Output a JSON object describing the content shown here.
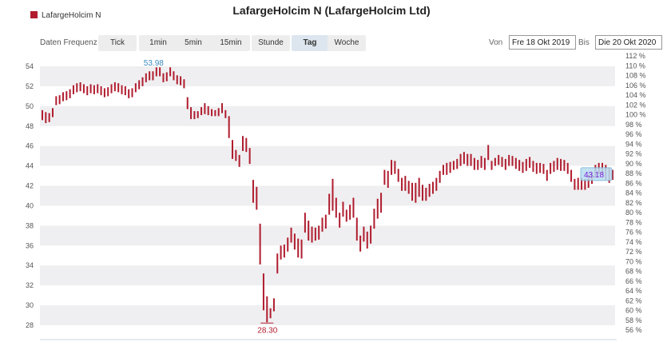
{
  "title": "LafargeHolcim N (LafargeHolcim Ltd)",
  "legend": {
    "label": "LafargeHolcim N",
    "color": "#b01c2e"
  },
  "toolbar": {
    "freq_label": "Daten Frequenz",
    "buttons": [
      "Tick",
      "1min",
      "5min",
      "15min",
      "Stunde",
      "Tag",
      "Woche"
    ],
    "active": "Tag"
  },
  "range": {
    "from_label": "Von",
    "from_value": "Fre 18 Okt 2019",
    "to_label": "Bis",
    "to_value": "Die 20 Okt 2020"
  },
  "chart_data": {
    "type": "bar",
    "subtype": "high-low",
    "left_axis": {
      "min": 27,
      "max": 55,
      "ticks": [
        28,
        30,
        32,
        34,
        36,
        38,
        40,
        42,
        44,
        46,
        48,
        50,
        52,
        54
      ]
    },
    "right_axis": {
      "unit": "%",
      "ticks": [
        56,
        58,
        60,
        62,
        64,
        66,
        68,
        70,
        72,
        74,
        76,
        78,
        80,
        82,
        84,
        86,
        88,
        90,
        92,
        94,
        96,
        98,
        100,
        102,
        104,
        106,
        108,
        110,
        112
      ]
    },
    "grid": "alternating horizontal bands",
    "annotations": {
      "high": "53.98",
      "low": "28.30",
      "last": "43.18"
    },
    "colors": {
      "bars": "#b01c2e",
      "high_label": "#3a8bbf",
      "low_label": "#b01c2e",
      "last_label": "#7a1fd6",
      "last_box": "#b9dcf2",
      "band": "#efeff1"
    },
    "series": [
      {
        "name": "LafargeHolcim N",
        "highs": [
          49.6,
          49.4,
          49.3,
          49.8,
          51,
          51.1,
          51.4,
          51.5,
          51.7,
          52.1,
          52.3,
          52.4,
          52.2,
          52,
          52.2,
          52.1,
          52.2,
          52,
          51.8,
          51.9,
          52.2,
          52.4,
          52.3,
          52.1,
          52,
          51.7,
          51.8,
          52.3,
          52.6,
          52.9,
          53.3,
          53.5,
          53.5,
          53.9,
          53.9,
          53.3,
          53.4,
          53.9,
          53.5,
          53.1,
          53,
          52.7,
          50.9,
          49.9,
          49.5,
          49.5,
          49.9,
          50.3,
          50,
          49.7,
          49.6,
          49.8,
          50.3,
          49.6,
          49,
          46.6,
          45.6,
          45.1,
          47,
          46.8,
          45.8,
          42.6,
          41.9,
          38.2,
          33.2,
          30.9,
          29.7,
          30.7,
          35.2,
          36,
          36.1,
          36.8,
          37.8,
          37.2,
          36.7,
          36.6,
          39.3,
          38.5,
          37.9,
          37.8,
          38,
          38.8,
          39.1,
          41.2,
          42.7,
          40.8,
          39.3,
          40.4,
          39.6,
          40.1,
          40.8,
          38.8,
          37,
          37.9,
          37.4,
          38,
          39.7,
          40.7,
          41.3,
          43.6,
          43.5,
          44.6,
          44.5,
          43.7,
          42.8,
          43,
          42.5,
          42.3,
          42.3,
          42.8,
          42.1,
          41.8,
          42.2,
          42.4,
          42.8,
          43.5,
          44.1,
          44.3,
          44.4,
          44.5,
          44.7,
          45.2,
          45.4,
          45.2,
          45.2,
          44.8,
          44.6,
          45,
          44.8,
          46.1,
          44.5,
          44.8,
          45.1,
          44.9,
          44.7,
          45.1,
          45,
          44.8,
          44.6,
          44.4,
          44.7,
          44.9,
          44.5,
          44.3,
          44.3,
          44.2,
          43.6,
          44.3,
          44.5,
          44.8,
          44.7,
          44.6,
          44.3,
          43.6,
          42.7,
          42.8,
          42.8,
          42.7,
          43.1,
          43.4,
          44.1,
          44.3,
          44.3,
          44.1,
          43.8,
          43.6
        ],
        "lows": [
          48.6,
          48.3,
          48.4,
          48.9,
          50.1,
          50.2,
          50.5,
          50.6,
          50.8,
          51.2,
          51.4,
          51.5,
          51.3,
          51.1,
          51.3,
          51.2,
          51.3,
          51.1,
          50.9,
          51,
          51.3,
          51.5,
          51.4,
          51.2,
          51.1,
          50.8,
          50.9,
          51.4,
          51.7,
          52,
          52.4,
          52.6,
          52.6,
          53,
          53,
          52.4,
          52.5,
          53,
          52.6,
          52.2,
          52.1,
          51.8,
          49.7,
          48.7,
          48.7,
          48.8,
          49.1,
          49.2,
          49.1,
          49,
          49,
          49,
          49.3,
          48.8,
          46.8,
          44.7,
          44.5,
          43.9,
          45.5,
          45.4,
          44.2,
          40.3,
          39.6,
          34.1,
          29.5,
          28.3,
          28.7,
          29.4,
          33.2,
          34.6,
          34.8,
          35.4,
          36.3,
          35.6,
          34.8,
          34.7,
          37.3,
          36.5,
          36.3,
          36.5,
          36.6,
          37.4,
          37.7,
          39.1,
          39.5,
          38.8,
          37.8,
          38.9,
          38.4,
          38.6,
          38.8,
          36.5,
          35.4,
          36.4,
          35.7,
          36.2,
          37.7,
          38.7,
          39.3,
          42.1,
          41.8,
          43.1,
          43.2,
          42.4,
          41.5,
          41.5,
          41.2,
          40.5,
          40.3,
          40.9,
          40.5,
          40.5,
          40.9,
          41.2,
          41.5,
          42.3,
          43.1,
          43.1,
          43.3,
          43.6,
          43.7,
          44,
          44.2,
          44,
          44,
          43.6,
          43.6,
          43.8,
          43.6,
          44.6,
          43.6,
          44,
          44.1,
          43.9,
          43.6,
          44,
          44,
          43.7,
          43.5,
          43.3,
          43.5,
          43.8,
          43.4,
          43.2,
          43.3,
          43.2,
          42.5,
          43.2,
          43.4,
          43.6,
          43.5,
          43.5,
          43.2,
          42.4,
          41.6,
          41.6,
          41.6,
          41.6,
          41.8,
          42.2,
          42.9,
          43.2,
          43.1,
          42.6,
          42.3,
          42.6
        ]
      }
    ]
  }
}
